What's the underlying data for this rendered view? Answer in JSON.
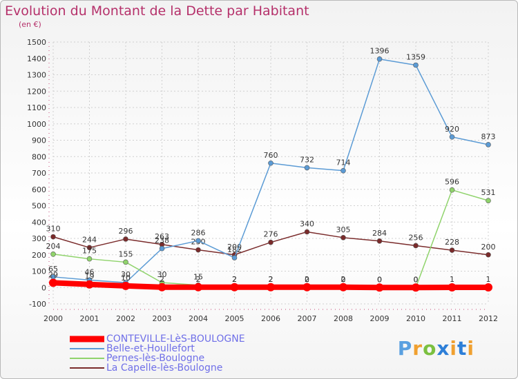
{
  "title": "Evolution du Montant de la Dette par Habitant",
  "subtitle": "(en €)",
  "logo_text": "Proxiti",
  "chart_data": {
    "type": "line",
    "title": "Evolution du Montant de la Dette par Habitant",
    "subtitle": "(en €)",
    "x": [
      "2000",
      "2001",
      "2002",
      "2003",
      "2004",
      "2005",
      "2006",
      "2007",
      "2008",
      "2009",
      "2010",
      "2011",
      "2012"
    ],
    "ylim": [
      -100,
      1500
    ],
    "yticks": [
      -100,
      0,
      100,
      200,
      300,
      400,
      500,
      600,
      700,
      800,
      900,
      1000,
      1100,
      1200,
      1300,
      1400,
      1500
    ],
    "grid": true,
    "legend_position": "bottom-left",
    "series": [
      {
        "name": "CONTEVILLE-LèS-BOULOGNE",
        "color": "#ff0000",
        "values": [
          29,
          19,
          10,
          2,
          2,
          2,
          2,
          2,
          2,
          0,
          0,
          1,
          1
        ]
      },
      {
        "name": "Belle-et-Houllefort",
        "color": "#5b9bd5",
        "values": [
          65,
          46,
          30,
          238,
          286,
          182,
          760,
          732,
          714,
          1396,
          1359,
          920,
          873
        ]
      },
      {
        "name": "Pernes-lès-Boulogne",
        "color": "#8fd36b",
        "values": [
          204,
          175,
          155,
          30,
          15,
          2,
          2,
          0,
          0,
          0,
          0,
          596,
          531
        ]
      },
      {
        "name": "La Capelle-lès-Boulogne",
        "color": "#7a2b2b",
        "values": [
          310,
          244,
          296,
          263,
          230,
          200,
          276,
          340,
          305,
          284,
          256,
          228,
          200
        ]
      }
    ]
  }
}
